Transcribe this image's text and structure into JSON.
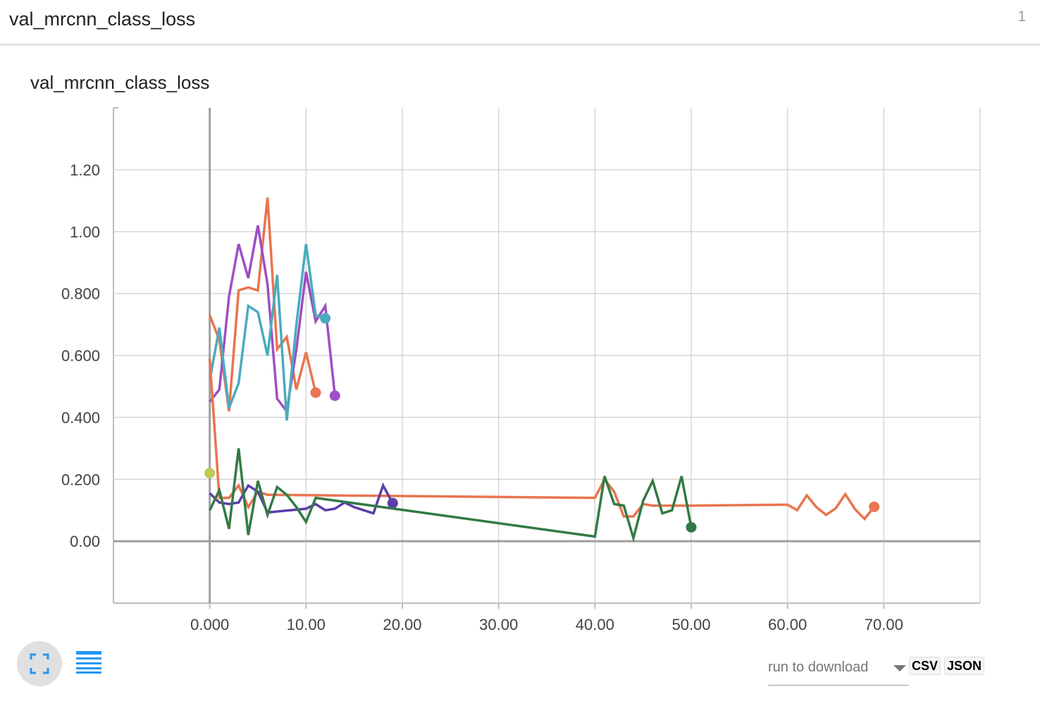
{
  "header": {
    "title": "val_mrcnn_class_loss",
    "count": "1"
  },
  "card": {
    "title": "val_mrcnn_class_loss"
  },
  "controls": {
    "run_label": "run to download",
    "csv_label": "CSV",
    "json_label": "JSON",
    "expand_icon": "fullscreen-icon",
    "data_icon": "list-icon"
  },
  "chart_data": {
    "type": "line",
    "title": "val_mrcnn_class_loss",
    "xlim": [
      -10,
      80
    ],
    "ylim": [
      -0.2,
      1.4
    ],
    "xticks": [
      0,
      10,
      20,
      30,
      40,
      50,
      60,
      70
    ],
    "xtick_labels": [
      "0.000",
      "10.00",
      "20.00",
      "30.00",
      "40.00",
      "50.00",
      "60.00",
      "70.00"
    ],
    "yticks": [
      0,
      0.2,
      0.4,
      0.6,
      0.8,
      1.0,
      1.2
    ],
    "ytick_labels": [
      "0.00",
      "0.200",
      "0.400",
      "0.600",
      "0.800",
      "1.00",
      "1.20"
    ],
    "grid": true,
    "series": [
      {
        "color": "#e8754f",
        "points": [
          [
            0,
            0.73
          ],
          [
            1,
            0.65
          ],
          [
            2,
            0.42
          ],
          [
            3,
            0.81
          ],
          [
            4,
            0.82
          ],
          [
            5,
            0.81
          ],
          [
            6,
            1.11
          ],
          [
            7,
            0.62
          ],
          [
            8,
            0.66
          ],
          [
            9,
            0.49
          ],
          [
            10,
            0.61
          ],
          [
            11,
            0.48
          ]
        ]
      },
      {
        "color": "#9e4fc4",
        "points": [
          [
            0,
            0.45
          ],
          [
            1,
            0.49
          ],
          [
            2,
            0.79
          ],
          [
            3,
            0.96
          ],
          [
            4,
            0.85
          ],
          [
            5,
            1.02
          ],
          [
            6,
            0.83
          ],
          [
            7,
            0.46
          ],
          [
            8,
            0.42
          ],
          [
            9,
            0.62
          ],
          [
            10,
            0.87
          ],
          [
            11,
            0.71
          ],
          [
            12,
            0.76
          ],
          [
            13,
            0.47
          ]
        ]
      },
      {
        "color": "#4aabbe",
        "points": [
          [
            0,
            0.52
          ],
          [
            1,
            0.69
          ],
          [
            2,
            0.43
          ],
          [
            3,
            0.51
          ],
          [
            4,
            0.76
          ],
          [
            5,
            0.74
          ],
          [
            6,
            0.6
          ],
          [
            7,
            0.86
          ],
          [
            8,
            0.39
          ],
          [
            9,
            0.7
          ],
          [
            10,
            0.96
          ],
          [
            11,
            0.73
          ],
          [
            12,
            0.72
          ]
        ]
      },
      {
        "color": "#e8754f",
        "points": [
          [
            0,
            0.59
          ],
          [
            1,
            0.14
          ],
          [
            2,
            0.14
          ],
          [
            3,
            0.18
          ],
          [
            4,
            0.11
          ],
          [
            5,
            0.16
          ],
          [
            6,
            0.15
          ],
          [
            40,
            0.14
          ],
          [
            41,
            0.2
          ],
          [
            42,
            0.16
          ],
          [
            43,
            0.08
          ],
          [
            44,
            0.08
          ],
          [
            45,
            0.12
          ],
          [
            46,
            0.115
          ],
          [
            50,
            0.115
          ],
          [
            60,
            0.118
          ],
          [
            61,
            0.1
          ],
          [
            62,
            0.148
          ],
          [
            63,
            0.11
          ],
          [
            64,
            0.085
          ],
          [
            65,
            0.106
          ],
          [
            66,
            0.152
          ],
          [
            67,
            0.104
          ],
          [
            68,
            0.072
          ],
          [
            69,
            0.111
          ]
        ]
      },
      {
        "color": "#5b3ea8",
        "points": [
          [
            0,
            0.155
          ],
          [
            1,
            0.125
          ],
          [
            2,
            0.12
          ],
          [
            3,
            0.125
          ],
          [
            4,
            0.18
          ],
          [
            5,
            0.16
          ],
          [
            6,
            0.093
          ],
          [
            10,
            0.105
          ],
          [
            11,
            0.12
          ],
          [
            12,
            0.1
          ],
          [
            13,
            0.105
          ],
          [
            14,
            0.125
          ],
          [
            15,
            0.11
          ],
          [
            16,
            0.1
          ],
          [
            17,
            0.09
          ],
          [
            18,
            0.18
          ],
          [
            19,
            0.123
          ]
        ]
      },
      {
        "color": "#337a46",
        "points": [
          [
            0,
            0.1
          ],
          [
            1,
            0.165
          ],
          [
            2,
            0.04
          ],
          [
            3,
            0.3
          ],
          [
            4,
            0.02
          ],
          [
            5,
            0.195
          ],
          [
            6,
            0.085
          ],
          [
            7,
            0.175
          ],
          [
            8,
            0.15
          ],
          [
            9,
            0.11
          ],
          [
            10,
            0.062
          ],
          [
            11,
            0.14
          ],
          [
            40,
            0.015
          ],
          [
            41,
            0.21
          ],
          [
            42,
            0.12
          ],
          [
            43,
            0.115
          ],
          [
            44,
            0.01
          ],
          [
            45,
            0.13
          ],
          [
            46,
            0.195
          ],
          [
            47,
            0.09
          ],
          [
            48,
            0.1
          ],
          [
            49,
            0.21
          ],
          [
            50,
            0.045
          ]
        ]
      }
    ],
    "markers": [
      {
        "x": 0,
        "y": 0.22,
        "color": "#c0ca53"
      }
    ]
  }
}
